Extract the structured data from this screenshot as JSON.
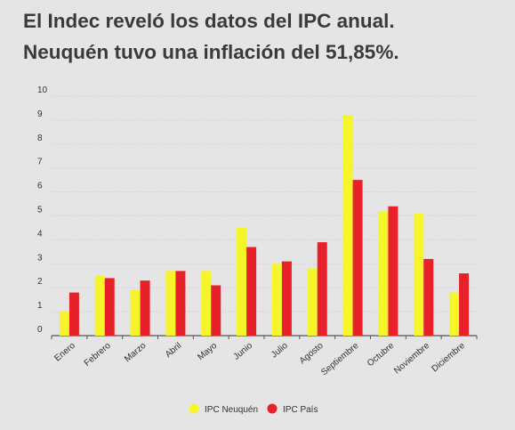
{
  "title_lines": [
    "El Indec reveló los datos del IPC anual.",
    "Neuquén tuvo una inflación del 51,85%."
  ],
  "colors": {
    "neuquen": "#f5f52a",
    "pais": "#e8202a",
    "grid": "#c8c8c8",
    "axis": "#555555",
    "background": "#e5e5e5"
  },
  "chart_data": {
    "type": "bar",
    "categories": [
      "Enero",
      "Febrero",
      "Marzo",
      "Abril",
      "Mayo",
      "Junio",
      "Julio",
      "Agosto",
      "Septiembre",
      "Octubre",
      "Noviembre",
      "Diciembre"
    ],
    "series": [
      {
        "name": "IPC Neuquén",
        "color": "#f5f52a",
        "values": [
          1.0,
          2.5,
          1.9,
          2.7,
          2.7,
          4.5,
          3.0,
          2.8,
          9.2,
          5.2,
          5.1,
          1.8
        ]
      },
      {
        "name": "IPC País",
        "color": "#e8202a",
        "values": [
          1.8,
          2.4,
          2.3,
          2.7,
          2.1,
          3.7,
          3.1,
          3.9,
          6.5,
          5.4,
          3.2,
          2.6
        ]
      }
    ],
    "ylim": [
      0,
      10
    ],
    "yticks": [
      0,
      1,
      2,
      3,
      4,
      5,
      6,
      7,
      8,
      9,
      10
    ],
    "grid": true,
    "legend_position": "bottom-center"
  }
}
